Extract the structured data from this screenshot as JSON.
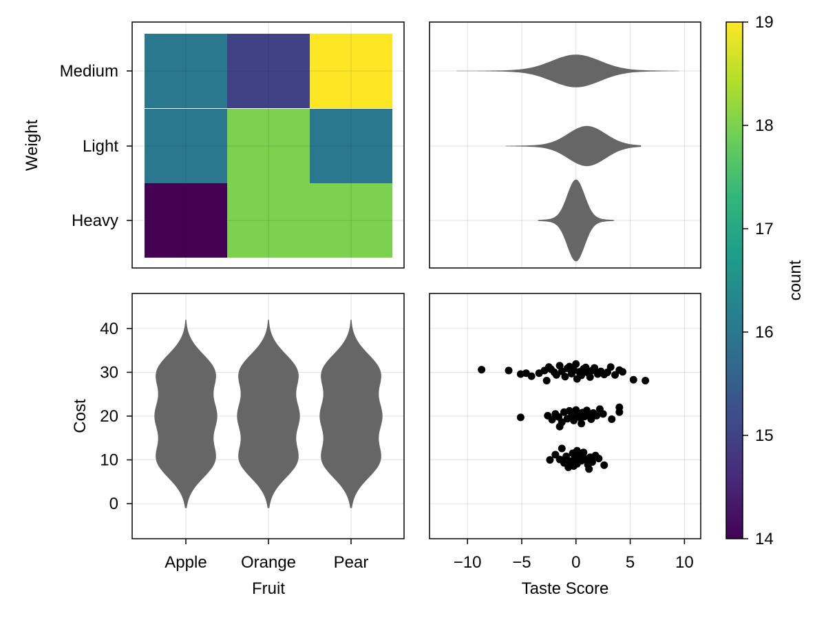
{
  "chart_data": [
    {
      "type": "heatmap",
      "x_categories": [
        "Apple",
        "Orange",
        "Pear"
      ],
      "y_categories": [
        "Heavy",
        "Light",
        "Medium"
      ],
      "ylabel": "Weight",
      "values": [
        [
          14,
          18,
          18
        ],
        [
          16,
          18,
          16
        ],
        [
          16,
          15,
          19
        ]
      ],
      "grid": true
    },
    {
      "type": "violin",
      "orientation": "horizontal",
      "categories": [
        "Heavy",
        "Light",
        "Medium"
      ],
      "xlim": [
        -13.5,
        11.5
      ],
      "xticks": [
        -10,
        -5,
        0,
        5,
        10
      ],
      "color": "#666666",
      "series": [
        {
          "category": "Heavy",
          "range": [
            -3.5,
            3.5
          ],
          "center": 0,
          "spread": 0.8,
          "max_half_width": 0.55
        },
        {
          "category": "Light",
          "range": [
            -6.5,
            6
          ],
          "center": 1,
          "spread": 1.7,
          "max_half_width": 0.27
        },
        {
          "category": "Medium",
          "range": [
            -11,
            9.5
          ],
          "center": 0,
          "spread": 2.2,
          "max_half_width": 0.22
        }
      ],
      "grid": true
    },
    {
      "type": "violin",
      "orientation": "vertical",
      "categories": [
        "Apple",
        "Orange",
        "Pear"
      ],
      "xlabel": "Fruit",
      "ylabel": "Cost",
      "ylim": [
        -8,
        48
      ],
      "yticks": [
        0,
        10,
        20,
        30,
        40
      ],
      "color": "#666666",
      "series": [
        {
          "category": "Apple",
          "range": [
            -1,
            42
          ],
          "modes": [
            10,
            20,
            30
          ]
        },
        {
          "category": "Orange",
          "range": [
            -1,
            42
          ],
          "modes": [
            10,
            20,
            30
          ]
        },
        {
          "category": "Pear",
          "range": [
            -1,
            42
          ],
          "modes": [
            10,
            20,
            30
          ]
        }
      ],
      "grid": true
    },
    {
      "type": "scatter",
      "xlabel": "Taste Score",
      "xlim": [
        -13.5,
        11.5
      ],
      "ylim": [
        -8,
        48
      ],
      "xticks": [
        -10,
        -5,
        0,
        5,
        10
      ],
      "marker_color": "#000000",
      "series": [
        {
          "points": [
            [
              -8.7,
              30.6
            ],
            [
              -6.2,
              30.4
            ],
            [
              -5.1,
              29.6
            ],
            [
              -4.6,
              29.8
            ],
            [
              -4.1,
              29.1
            ],
            [
              -3.4,
              29.8
            ],
            [
              -2.9,
              30.4
            ],
            [
              -2.7,
              28.1
            ],
            [
              -2.5,
              31.2
            ],
            [
              -2.3,
              30.7
            ],
            [
              -2.0,
              30.0
            ],
            [
              -1.8,
              29.4
            ],
            [
              -1.5,
              31.5
            ],
            [
              -1.3,
              30.2
            ],
            [
              -1.0,
              29.0
            ],
            [
              -0.8,
              30.9
            ],
            [
              -0.6,
              31.3
            ],
            [
              -0.4,
              29.7
            ],
            [
              -0.2,
              30.5
            ],
            [
              0.0,
              31.9
            ],
            [
              0.1,
              28.5
            ],
            [
              0.3,
              30.1
            ],
            [
              0.5,
              29.3
            ],
            [
              0.7,
              30.8
            ],
            [
              0.9,
              31.1
            ],
            [
              1.1,
              29.9
            ],
            [
              1.3,
              28.9
            ],
            [
              1.5,
              30.4
            ],
            [
              1.7,
              31.0
            ],
            [
              2.0,
              29.6
            ],
            [
              2.3,
              30.2
            ],
            [
              2.6,
              29.5
            ],
            [
              2.9,
              30.0
            ],
            [
              3.2,
              31.2
            ],
            [
              3.6,
              29.4
            ],
            [
              4.0,
              30.5
            ],
            [
              4.3,
              30.1
            ],
            [
              5.3,
              28.3
            ],
            [
              6.4,
              28.1
            ]
          ]
        },
        {
          "points": [
            [
              -5.1,
              19.7
            ],
            [
              -2.6,
              20.1
            ],
            [
              -2.2,
              19.2
            ],
            [
              -1.9,
              20.5
            ],
            [
              -1.6,
              19.8
            ],
            [
              -1.3,
              18.6
            ],
            [
              -1.1,
              20.9
            ],
            [
              -0.8,
              19.4
            ],
            [
              -0.6,
              21.2
            ],
            [
              -0.4,
              20.0
            ],
            [
              -0.2,
              19.0
            ],
            [
              0.0,
              21.4
            ],
            [
              0.2,
              20.3
            ],
            [
              0.4,
              19.6
            ],
            [
              0.6,
              20.8
            ],
            [
              0.8,
              19.9
            ],
            [
              1.0,
              21.3
            ],
            [
              1.2,
              20.4
            ],
            [
              1.4,
              19.3
            ],
            [
              1.6,
              20.7
            ],
            [
              1.9,
              20.1
            ],
            [
              2.2,
              21.6
            ],
            [
              2.5,
              20.5
            ],
            [
              3.3,
              19.3
            ],
            [
              4.0,
              22.0
            ],
            [
              4.0,
              20.9
            ],
            [
              -1.5,
              17.6
            ],
            [
              0.5,
              18.3
            ]
          ]
        },
        {
          "points": [
            [
              -2.4,
              10.0
            ],
            [
              -1.9,
              11.2
            ],
            [
              -1.5,
              10.1
            ],
            [
              -1.3,
              12.6
            ],
            [
              -1.1,
              9.3
            ],
            [
              -0.9,
              10.8
            ],
            [
              -0.7,
              8.3
            ],
            [
              -0.5,
              9.7
            ],
            [
              -0.3,
              11.5
            ],
            [
              -0.1,
              10.4
            ],
            [
              0.1,
              12.1
            ],
            [
              0.1,
              9.1
            ],
            [
              0.3,
              10.9
            ],
            [
              0.5,
              9.8
            ],
            [
              0.7,
              11.7
            ],
            [
              0.9,
              10.2
            ],
            [
              1.1,
              8.9
            ],
            [
              1.3,
              10.6
            ],
            [
              1.5,
              9.5
            ],
            [
              1.8,
              11.0
            ],
            [
              2.1,
              10.3
            ],
            [
              2.6,
              8.8
            ],
            [
              1.2,
              7.9
            ],
            [
              -0.2,
              8.6
            ]
          ]
        }
      ],
      "grid": true
    },
    {
      "type": "colorbar",
      "label": "count",
      "range": [
        14,
        19
      ],
      "ticks": [
        14,
        15,
        16,
        17,
        18,
        19
      ],
      "colormap": "viridis",
      "colormap_stops": [
        "#440154",
        "#482878",
        "#3e4989",
        "#31688e",
        "#26828e",
        "#1f9e89",
        "#35b779",
        "#6ece58",
        "#b5de2b",
        "#fde725"
      ]
    }
  ]
}
